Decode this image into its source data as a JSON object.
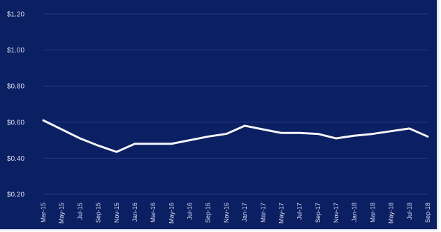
{
  "chart_data": {
    "type": "line",
    "title": "",
    "xlabel": "",
    "ylabel": "",
    "ylim": [
      0.2,
      1.2
    ],
    "yticks": [
      0.2,
      0.4,
      0.6,
      0.8,
      1.0,
      1.2
    ],
    "ytick_labels": [
      "$0.20",
      "$0.40",
      "$0.60",
      "$0.80",
      "$1.00",
      "$1.20"
    ],
    "grid": true,
    "categories": [
      "Mar-15",
      "May-15",
      "Jul-15",
      "Sep-15",
      "Nov-15",
      "Jan-16",
      "Mar-16",
      "May-16",
      "Jul-16",
      "Sep-16",
      "Nov-16",
      "Jan-17",
      "Mar-17",
      "May-17",
      "Jul-17",
      "Sep-17",
      "Nov-17",
      "Jan-18",
      "Mar-18",
      "May-18",
      "Jul-18",
      "Sep-18"
    ],
    "series": [
      {
        "values": [
          0.61,
          0.56,
          0.51,
          0.47,
          0.435,
          0.48,
          0.48,
          0.48,
          0.5,
          0.52,
          0.535,
          0.58,
          0.56,
          0.54,
          0.54,
          0.535,
          0.51,
          0.525,
          0.535,
          0.55,
          0.565,
          0.52
        ]
      }
    ],
    "colors": {
      "background": "#0b1f63",
      "line": "#f4f6ff",
      "grid": "#243a86",
      "text": "#d9def0"
    }
  }
}
